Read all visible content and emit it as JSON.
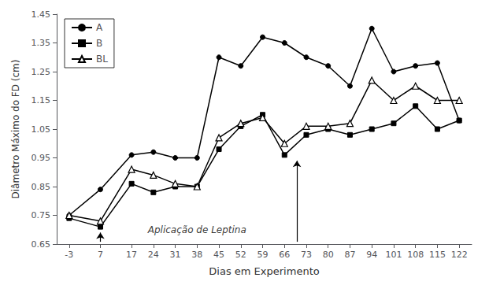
{
  "chart_data": {
    "type": "line",
    "xlabel": "Dias em Experimento",
    "ylabel": "Diâmetro Máximo do FD (cm)",
    "x": [
      -3,
      7,
      17,
      24,
      31,
      38,
      45,
      52,
      59,
      66,
      73,
      80,
      87,
      94,
      101,
      108,
      115,
      122
    ],
    "series": [
      {
        "name": "A",
        "color": "black",
        "marker": "circle",
        "values": [
          0.75,
          0.84,
          0.96,
          0.97,
          0.95,
          0.95,
          1.3,
          1.27,
          1.37,
          1.35,
          1.3,
          1.27,
          1.2,
          1.4,
          1.25,
          1.27,
          1.28,
          1.08
        ]
      },
      {
        "name": "B",
        "color": "black",
        "marker": "square",
        "values": [
          0.74,
          0.71,
          0.86,
          0.83,
          0.85,
          0.85,
          0.98,
          1.06,
          1.1,
          0.96,
          1.03,
          1.05,
          1.03,
          1.05,
          1.07,
          1.13,
          1.05,
          1.08
        ]
      },
      {
        "name": "BL",
        "color": "black",
        "marker": "open-triangle",
        "values": [
          0.75,
          0.73,
          0.91,
          0.89,
          0.86,
          0.85,
          1.02,
          1.07,
          1.09,
          1.0,
          1.06,
          1.06,
          1.07,
          1.22,
          1.15,
          1.2,
          1.15,
          1.15
        ]
      }
    ],
    "xlim": [
      -7,
      126
    ],
    "xticks": [
      -3,
      7,
      17,
      24,
      31,
      38,
      45,
      52,
      59,
      66,
      73,
      80,
      87,
      94,
      101,
      108,
      115,
      122
    ],
    "ylim": [
      0.65,
      1.45
    ],
    "yticks": [
      0.65,
      0.75,
      0.85,
      0.95,
      1.05,
      1.15,
      1.25,
      1.35,
      1.45
    ],
    "annotations": [
      {
        "text": "Aplicação de Leptina",
        "x": 38,
        "y": 0.682
      }
    ],
    "arrows": [
      {
        "x": 7,
        "from": 0.658,
        "to": 0.69
      },
      {
        "x": 70,
        "from": 0.658,
        "to": 0.94
      }
    ],
    "grid": false,
    "legend": "upper left"
  }
}
